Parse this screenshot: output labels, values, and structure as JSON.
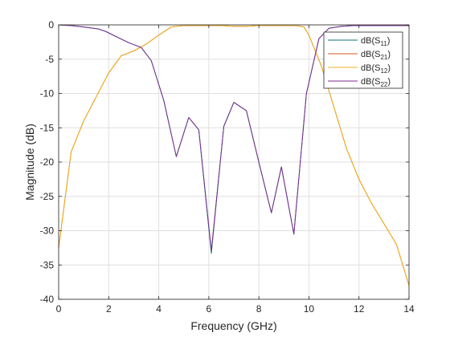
{
  "chart_data": {
    "type": "line",
    "xlabel": "Frequency (GHz)",
    "ylabel": "Magnitude (dB)",
    "xlim": [
      0,
      14
    ],
    "ylim": [
      -40,
      0
    ],
    "xticks": [
      0,
      2,
      4,
      6,
      8,
      10,
      12,
      14
    ],
    "yticks": [
      0,
      -5,
      -10,
      -15,
      -20,
      -25,
      -30,
      -35,
      -40
    ],
    "grid": true,
    "legend_position": "top-right",
    "series": [
      {
        "name": "dB(S11)",
        "label_base": "dB(S",
        "label_sub": "11",
        "label_end": ")",
        "color": "#0c6f73",
        "x": [
          0,
          0.5,
          1.0,
          1.6,
          1.9,
          2.4,
          2.8,
          3.3,
          3.7,
          4.2,
          4.7,
          5.2,
          5.6,
          6.1,
          6.6,
          7.0,
          7.5,
          8.0,
          8.5,
          8.9,
          9.4,
          9.9,
          10.4,
          10.8,
          11.3,
          11.8,
          12.2,
          12.7,
          13.2,
          13.6,
          14.0
        ],
        "y": [
          0.0,
          -0.1,
          -0.3,
          -0.6,
          -1.0,
          -1.9,
          -2.6,
          -3.3,
          -5.2,
          -11.0,
          -19.2,
          -13.5,
          -15.3,
          -33.3,
          -14.8,
          -11.3,
          -12.5,
          -20.0,
          -27.4,
          -20.7,
          -30.5,
          -10.0,
          -2.0,
          -0.5,
          -0.2,
          -0.1,
          -0.1,
          -0.1,
          -0.1,
          -0.1,
          -0.1
        ]
      },
      {
        "name": "dB(S21)",
        "label_base": "dB(S",
        "label_sub": "21",
        "label_end": ")",
        "color": "#d95319",
        "x": [
          0,
          0.5,
          1.0,
          1.5,
          2.0,
          2.5,
          3.0,
          3.5,
          4.0,
          4.5,
          5.0,
          5.5,
          6.0,
          6.5,
          7.0,
          7.5,
          8.0,
          8.5,
          9.0,
          9.5,
          9.8,
          10.0,
          10.5,
          11.0,
          11.5,
          12.0,
          12.5,
          13.0,
          13.5,
          14.0
        ],
        "y": [
          -32.5,
          -18.5,
          -14.0,
          -10.5,
          -7.0,
          -4.5,
          -3.8,
          -2.8,
          -1.5,
          -0.3,
          -0.1,
          -0.1,
          -0.1,
          -0.1,
          -0.2,
          -0.2,
          -0.1,
          -0.1,
          -0.1,
          -0.1,
          -0.3,
          -1.5,
          -6.0,
          -12.0,
          -18.0,
          -22.5,
          -26.0,
          -29.0,
          -32.0,
          -38.0
        ]
      },
      {
        "name": "dB(S12)",
        "label_base": "dB(S",
        "label_sub": "12",
        "label_end": ")",
        "color": "#edb120",
        "x": [
          0,
          0.5,
          1.0,
          1.5,
          2.0,
          2.5,
          3.0,
          3.5,
          4.0,
          4.5,
          5.0,
          5.5,
          6.0,
          6.5,
          7.0,
          7.5,
          8.0,
          8.5,
          9.0,
          9.5,
          9.8,
          10.0,
          10.5,
          11.0,
          11.5,
          12.0,
          12.5,
          13.0,
          13.5,
          14.0
        ],
        "y": [
          -32.5,
          -18.5,
          -14.0,
          -10.5,
          -7.0,
          -4.5,
          -3.8,
          -2.8,
          -1.5,
          -0.3,
          -0.1,
          -0.1,
          -0.1,
          -0.1,
          -0.2,
          -0.2,
          -0.1,
          -0.1,
          -0.1,
          -0.1,
          -0.3,
          -1.5,
          -6.0,
          -12.0,
          -18.0,
          -22.5,
          -26.0,
          -29.0,
          -32.0,
          -38.0
        ]
      },
      {
        "name": "dB(S22)",
        "label_base": "dB(S",
        "label_sub": "22",
        "label_end": ")",
        "color": "#7e2f8e",
        "x": [
          0,
          0.5,
          1.0,
          1.6,
          1.9,
          2.4,
          2.8,
          3.3,
          3.7,
          4.2,
          4.7,
          5.2,
          5.6,
          6.1,
          6.6,
          7.0,
          7.5,
          8.0,
          8.5,
          8.9,
          9.4,
          9.9,
          10.4,
          10.8,
          11.3,
          11.8,
          12.2,
          12.7,
          13.2,
          13.6,
          14.0
        ],
        "y": [
          0.0,
          -0.1,
          -0.3,
          -0.6,
          -1.0,
          -1.9,
          -2.6,
          -3.3,
          -5.2,
          -11.0,
          -19.2,
          -13.5,
          -15.3,
          -32.9,
          -14.8,
          -11.3,
          -12.5,
          -20.0,
          -27.4,
          -20.7,
          -30.5,
          -10.0,
          -2.0,
          -0.5,
          -0.2,
          -0.1,
          -0.1,
          -0.1,
          -0.1,
          -0.1,
          -0.1
        ]
      }
    ]
  }
}
